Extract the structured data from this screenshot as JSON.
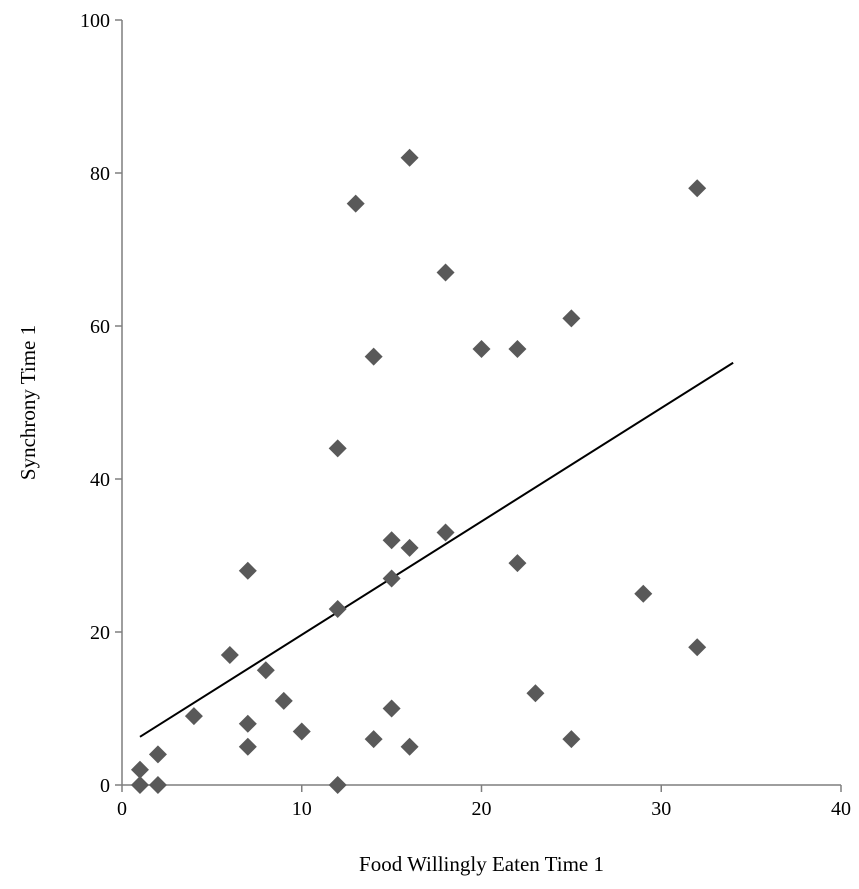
{
  "chart_data": {
    "type": "scatter",
    "title": "",
    "xlabel": "Food Willingly Eaten Time 1",
    "ylabel": "Synchrony Time 1",
    "xlim": [
      0,
      40
    ],
    "ylim": [
      0,
      100
    ],
    "x_ticks": [
      0,
      10,
      20,
      30,
      40
    ],
    "y_ticks": [
      0,
      20,
      40,
      60,
      80,
      100
    ],
    "grid": false,
    "legend": "none",
    "marker": "diamond",
    "marker_color": "#595959",
    "trendline_color": "#000000",
    "series": [
      {
        "points": [
          [
            1,
            2
          ],
          [
            1,
            0
          ],
          [
            2,
            4
          ],
          [
            2,
            0
          ],
          [
            4,
            9
          ],
          [
            6,
            17
          ],
          [
            7,
            28
          ],
          [
            7,
            8
          ],
          [
            7,
            5
          ],
          [
            8,
            15
          ],
          [
            9,
            11
          ],
          [
            10,
            7
          ],
          [
            12,
            44
          ],
          [
            12,
            23
          ],
          [
            12,
            0
          ],
          [
            13,
            76
          ],
          [
            14,
            56
          ],
          [
            14,
            6
          ],
          [
            15,
            32
          ],
          [
            15,
            27
          ],
          [
            15,
            10
          ],
          [
            16,
            82
          ],
          [
            16,
            31
          ],
          [
            16,
            5
          ],
          [
            18,
            67
          ],
          [
            18,
            33
          ],
          [
            20,
            57
          ],
          [
            22,
            57
          ],
          [
            22,
            29
          ],
          [
            23,
            12
          ],
          [
            25,
            61
          ],
          [
            25,
            6
          ],
          [
            29,
            25
          ],
          [
            32,
            78
          ],
          [
            32,
            18
          ]
        ]
      }
    ],
    "trendline": {
      "x": [
        1,
        34
      ],
      "y": [
        6.3,
        55.2
      ]
    }
  }
}
